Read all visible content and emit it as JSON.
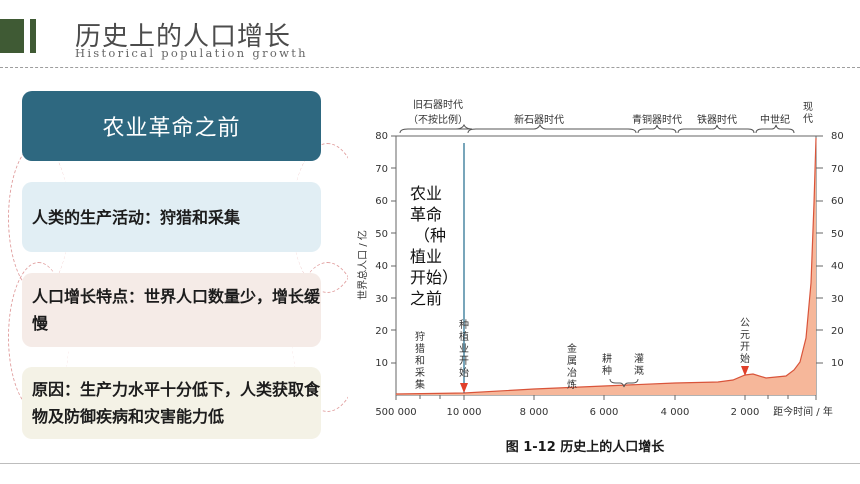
{
  "header": {
    "title": "历史上的人口增长",
    "subtitle": "Historical population growth"
  },
  "panel": {
    "heading": "农业革命之前",
    "items": [
      {
        "text": "人类的生产活动：狩猎和采集"
      },
      {
        "text": "人口增长特点：世界人口数量少，增长缓慢"
      },
      {
        "text": "原因：生产力水平十分低下，人类获取食物及防御疾病和灾害能力低"
      }
    ]
  },
  "figure": {
    "caption": "图 1-12 历史上的人口增长"
  },
  "chart_data": {
    "type": "area",
    "ylabel": "世界总人口 / 亿",
    "xlabel": "距今时间 / 年",
    "ylim": [
      0,
      80
    ],
    "yticks": [
      "10",
      "20",
      "30",
      "40",
      "50",
      "60",
      "70",
      "80"
    ],
    "xticks": [
      "500 000",
      "10 000",
      "8 000",
      "6 000",
      "4 000",
      "2 000"
    ],
    "eras": [
      {
        "label": "旧石器时代",
        "note": "（不按比例）"
      },
      {
        "label": "新石器时代"
      },
      {
        "label": "青铜器时代"
      },
      {
        "label": "铁器时代"
      },
      {
        "label": "中世纪"
      },
      {
        "label": "现代"
      }
    ],
    "callout": "农业革命（种植业开始）之前",
    "annotations": [
      "狩猎和采集",
      "种植业开始",
      "金属冶炼",
      "耕种",
      "灌溉",
      "公元开始"
    ],
    "x": [
      "500000",
      "10000",
      "8000",
      "6000",
      "4000",
      "2000",
      "1000",
      "500",
      "200",
      "100",
      "0"
    ],
    "values": [
      0.05,
      0.1,
      1,
      2,
      4,
      5,
      7,
      7,
      9,
      16,
      80
    ],
    "colors": {
      "fill": "#f6b79a",
      "line": "#d9543a",
      "marker": "#e0402a",
      "divider": "#1f6a8c"
    }
  }
}
